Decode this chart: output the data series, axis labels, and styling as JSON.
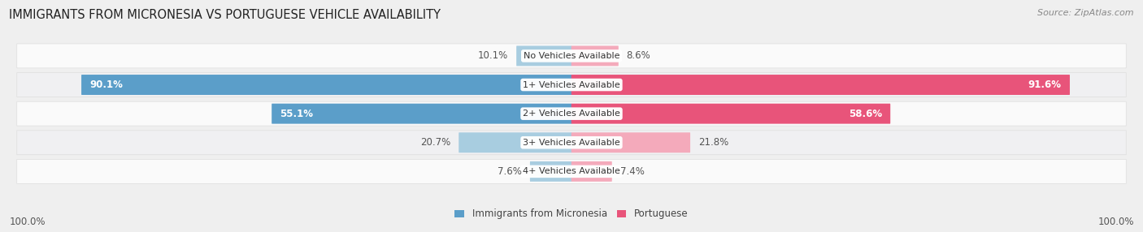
{
  "title": "IMMIGRANTS FROM MICRONESIA VS PORTUGUESE VEHICLE AVAILABILITY",
  "source": "Source: ZipAtlas.com",
  "categories": [
    "No Vehicles Available",
    "1+ Vehicles Available",
    "2+ Vehicles Available",
    "3+ Vehicles Available",
    "4+ Vehicles Available"
  ],
  "micronesia_values": [
    10.1,
    90.1,
    55.1,
    20.7,
    7.6
  ],
  "portuguese_values": [
    8.6,
    91.6,
    58.6,
    21.8,
    7.4
  ],
  "micronesia_color_dark": "#5B9EC9",
  "micronesia_color_light": "#A8CDE0",
  "portuguese_color_dark": "#E8547A",
  "portuguese_color_light": "#F4AABB",
  "bg_color": "#EFEFEF",
  "row_bg_color": "#FAFAFA",
  "row_alt_bg_color": "#F0F0F2",
  "max_value": 100.0,
  "bar_height": 0.62,
  "legend_label_micronesia": "Immigrants from Micronesia",
  "legend_label_portuguese": "Portuguese",
  "title_fontsize": 10.5,
  "source_fontsize": 8,
  "label_fontsize": 8.5,
  "category_fontsize": 8,
  "inside_threshold": 30
}
